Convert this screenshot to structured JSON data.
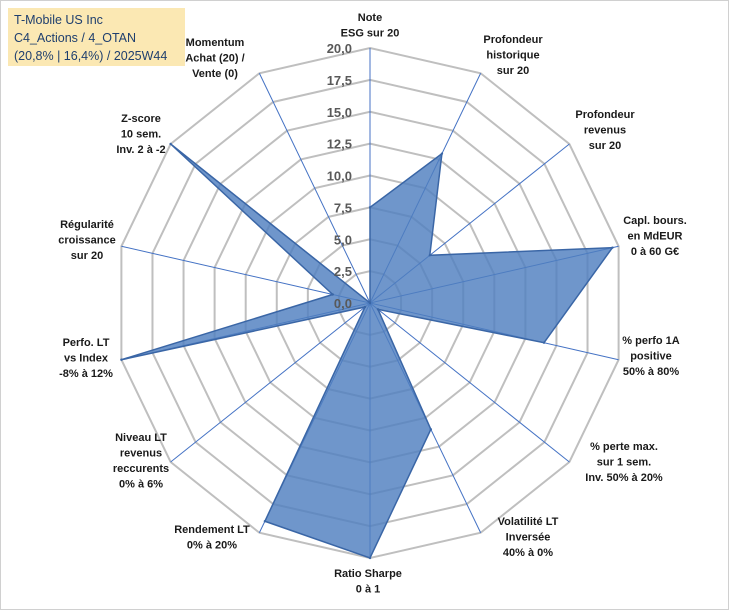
{
  "title_box": {
    "line1": "T-Mobile US Inc",
    "line2": "C4_Actions / 4_OTAN",
    "line3": "(20,8% | 16,4%) / 2025W44"
  },
  "colors": {
    "fill": "#4f7fbf",
    "stroke": "#3a66a6",
    "grid": "#bfbfbf",
    "axis": "#4472c4",
    "title_bg": "#fbe8b3"
  },
  "chart_data": {
    "type": "radar",
    "rmin": 0,
    "rmax": 20,
    "ticks": [
      "0,0",
      "2,5",
      "5,0",
      "7,5",
      "10,0",
      "12,5",
      "15,0",
      "17,5",
      "20,0"
    ],
    "tick_values": [
      0,
      2.5,
      5,
      7.5,
      10,
      12.5,
      15,
      17.5,
      20
    ],
    "categories": [
      [
        "Note",
        "ESG sur 20"
      ],
      [
        "Profondeur",
        "historique",
        "sur 20"
      ],
      [
        "Profondeur",
        "revenus",
        "sur 20"
      ],
      [
        "Capl. bours.",
        "en MdEUR",
        "0 à 60 G€"
      ],
      [
        "% perfo 1A",
        "positive",
        "50% à 80%"
      ],
      [
        "% perte max.",
        "sur 1 sem.",
        "Inv. 50% à 20%"
      ],
      [
        "Volatilité LT",
        "Inversée",
        "40% à 0%"
      ],
      [
        "Ratio Sharpe",
        "0 à 1"
      ],
      [
        "Rendement LT",
        "0% à 20%"
      ],
      [
        "Niveau LT",
        "revenus",
        "reccurents",
        "0% à 6%"
      ],
      [
        "Perfo. LT",
        "vs Index",
        "-8% à 12%"
      ],
      [
        "Régularité",
        "croissance",
        "sur 20"
      ],
      [
        "Z-score",
        "10 sem.",
        "Inv. 2 à -2"
      ],
      [
        "Momentum",
        "Achat (20) /",
        "Vente (0)"
      ]
    ],
    "values": [
      7.5,
      13.0,
      6.0,
      19.5,
      14.0,
      0.8,
      11.0,
      20.0,
      19.0,
      0.5,
      20.0,
      3.0,
      20.0,
      0.0
    ]
  }
}
